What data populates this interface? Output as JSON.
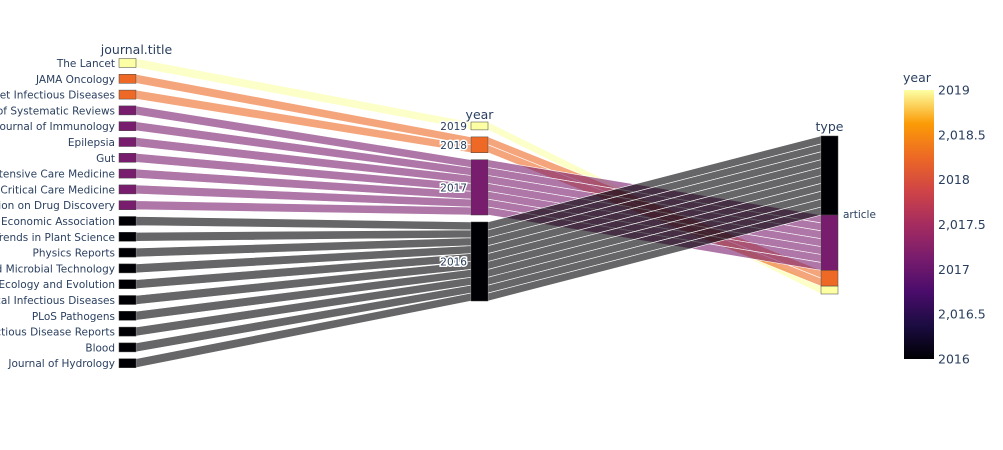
{
  "chart_data": {
    "type": "parallel_categories",
    "dimensions": [
      {
        "label": "journal.title",
        "categories": [
          "The Lancet",
          "JAMA Oncology",
          "The Lancet Infectious Diseases",
          "Cochrane Database of Systematic Reviews",
          "The Journal of Immunology",
          "Epilepsia",
          "Gut",
          "Intensive Care Medicine",
          "Critical Care Medicine",
          "Expert Opinion on Drug Discovery",
          "Journal of the American Economic Association",
          "Trends in Plant Science",
          "Physics Reports",
          "Applied Microbial Technology",
          "Ecology and Evolution",
          "Clinical Infectious Diseases",
          "PLoS Pathogens",
          "Infectious Disease Reports",
          "Blood",
          "Journal of Hydrology"
        ]
      },
      {
        "label": "year",
        "categories": [
          "2019",
          "2018",
          "2017",
          "2016"
        ]
      },
      {
        "label": "type",
        "categories": [
          "article"
        ]
      }
    ],
    "records": [
      {
        "journal": "The Lancet",
        "year": 2019,
        "type": "article"
      },
      {
        "journal": "JAMA Oncology",
        "year": 2018,
        "type": "article"
      },
      {
        "journal": "The Lancet Infectious Diseases",
        "year": 2018,
        "type": "article"
      },
      {
        "journal": "Cochrane Database of Systematic Reviews",
        "year": 2017,
        "type": "article"
      },
      {
        "journal": "The Journal of Immunology",
        "year": 2017,
        "type": "article"
      },
      {
        "journal": "Epilepsia",
        "year": 2017,
        "type": "article"
      },
      {
        "journal": "Gut",
        "year": 2017,
        "type": "article"
      },
      {
        "journal": "Intensive Care Medicine",
        "year": 2017,
        "type": "article"
      },
      {
        "journal": "Critical Care Medicine",
        "year": 2017,
        "type": "article"
      },
      {
        "journal": "Expert Opinion on Drug Discovery",
        "year": 2017,
        "type": "article"
      },
      {
        "journal": "Journal of the American Economic Association",
        "year": 2016,
        "type": "article"
      },
      {
        "journal": "Trends in Plant Science",
        "year": 2016,
        "type": "article"
      },
      {
        "journal": "Physics Reports",
        "year": 2016,
        "type": "article"
      },
      {
        "journal": "Applied Microbial Technology",
        "year": 2016,
        "type": "article"
      },
      {
        "journal": "Ecology and Evolution",
        "year": 2016,
        "type": "article"
      },
      {
        "journal": "Clinical Infectious Diseases",
        "year": 2016,
        "type": "article"
      },
      {
        "journal": "PLoS Pathogens",
        "year": 2016,
        "type": "article"
      },
      {
        "journal": "Infectious Disease Reports",
        "year": 2016,
        "type": "article"
      },
      {
        "journal": "Blood",
        "year": 2016,
        "type": "article"
      },
      {
        "journal": "Journal of Hydrology",
        "year": 2016,
        "type": "article"
      }
    ],
    "colorbar": {
      "title": "year",
      "min": 2016,
      "max": 2019,
      "ticks": [
        "2019",
        "2,018.5",
        "2018",
        "2,017.5",
        "2017",
        "2,016.5",
        "2016"
      ],
      "tick_values": [
        2019,
        2018.5,
        2018,
        2017.5,
        2017,
        2016.5,
        2016
      ],
      "colorscale": "inferno",
      "year_colors": {
        "2016": "#000004",
        "2017": "#781c6d",
        "2018": "#ed6925",
        "2019": "#fcffa4"
      }
    }
  }
}
